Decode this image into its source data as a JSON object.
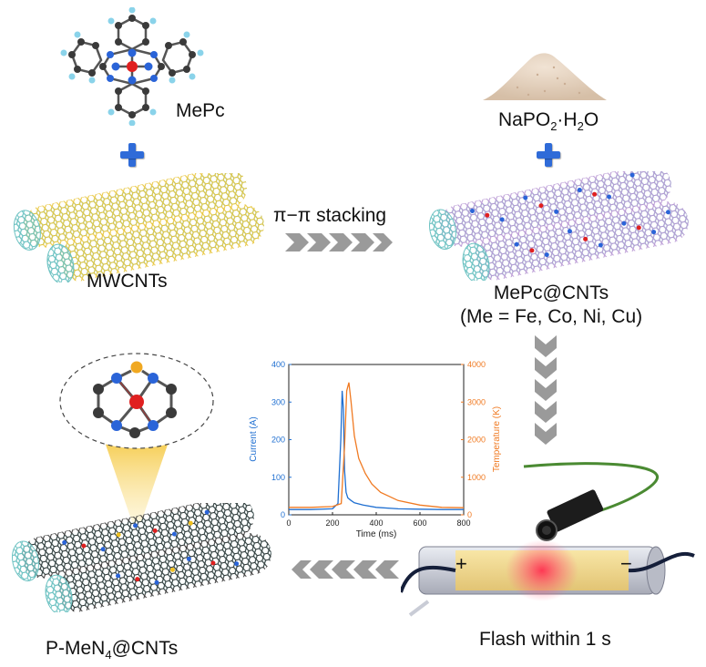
{
  "labels": {
    "mepc": "MePc",
    "mwcnts": "MWCNTs",
    "sodium_hypophosphite_pre": "NaPO",
    "sodium_hypophosphite_sub1": "2",
    "sodium_hypophosphite_mid": "·H",
    "sodium_hypophosphite_sub2": "2",
    "sodium_hypophosphite_post": "O",
    "stacking": "π−π stacking",
    "mepc_cnts_line1": "MePc@CNTs",
    "mepc_cnts_line2": "(Me = Fe, Co, Ni, Cu)",
    "product_pre": "P-MeN",
    "product_sub": "4",
    "product_post": "@CNTs",
    "flash": "Flash within 1 s",
    "electrode_plus": "+",
    "electrode_minus": "−"
  },
  "chart_data": {
    "type": "line",
    "xlabel": "Time (ms)",
    "ylabel": "Current (A)",
    "ylabel_right": "Temperature (K)",
    "xlim": [
      0,
      800
    ],
    "ylim": [
      0,
      400
    ],
    "ylim_right": [
      0,
      4000
    ],
    "x_ticks": [
      0,
      200,
      400,
      600,
      800
    ],
    "y_ticks": [
      0,
      100,
      200,
      300,
      400
    ],
    "y_right_ticks": [
      0,
      1000,
      2000,
      3000,
      4000
    ],
    "series": [
      {
        "name": "Current (A)",
        "axis": "left",
        "color": "#1f6fd1",
        "x": [
          0,
          100,
          200,
          225,
          238,
          244,
          250,
          255,
          262,
          270,
          285,
          300,
          340,
          400,
          500,
          600,
          700,
          800
        ],
        "y": [
          14,
          14,
          16,
          30,
          200,
          330,
          280,
          120,
          60,
          45,
          38,
          32,
          26,
          20,
          16,
          15,
          14,
          14
        ]
      },
      {
        "name": "Temperature (K)",
        "axis": "right",
        "color": "#f07a22",
        "x": [
          0,
          100,
          200,
          240,
          255,
          265,
          275,
          285,
          300,
          320,
          350,
          380,
          420,
          500,
          600,
          700,
          800
        ],
        "y": [
          200,
          200,
          220,
          300,
          1800,
          3300,
          3520,
          3000,
          2100,
          1500,
          1100,
          820,
          600,
          380,
          260,
          200,
          190
        ]
      }
    ]
  },
  "colors": {
    "plus": "#2f6bd8",
    "chevron": "#9a9a9a",
    "current": "#1f6fd1",
    "temperature": "#f07a22",
    "cnt_inner": "#6cc2c2",
    "cnt_outer_yellow": "#e8c53a",
    "cnt_outer_purple": "#b898d4",
    "cnt_outer_black": "#333333",
    "metal_center": "#e02020",
    "nitrogen": "#2a64d8"
  },
  "icons": [
    "mepc-molecule-icon",
    "powder-pile-icon",
    "plus-icon",
    "chevron-arrow-icon",
    "nanotube-icon",
    "flash-tube-icon",
    "pyrometer-icon"
  ]
}
